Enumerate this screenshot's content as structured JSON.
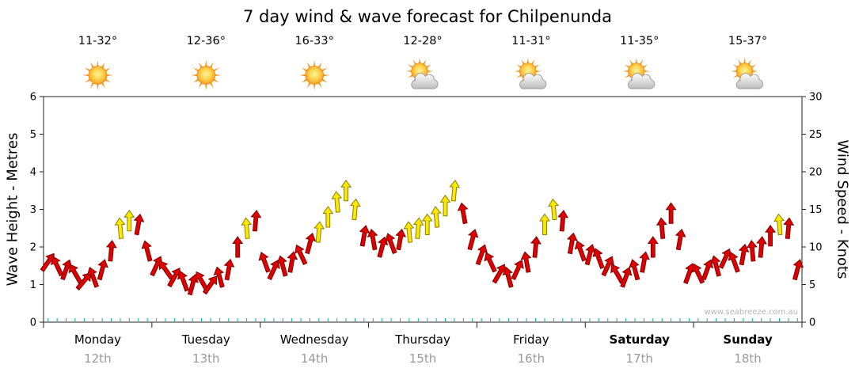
{
  "chart_data": {
    "type": "scatter",
    "subtype": "wind-arrow-forecast",
    "title": "7 day wind & wave forecast for Chilpenunda",
    "watermark": "www.seabreeze.com.au",
    "left_axis": {
      "label": "Wave Height - Metres",
      "min": 0,
      "max": 6,
      "ticks": [
        0,
        1,
        2,
        3,
        4,
        5,
        6
      ]
    },
    "right_axis": {
      "label": "Wind Speed - Knots",
      "min": 0,
      "max": 30,
      "ticks": [
        0,
        5,
        10,
        15,
        20,
        25,
        30
      ]
    },
    "wind_units": "knots",
    "direction_units": "degrees clockwise from up",
    "colors": {
      "arrow_low": "#E10000",
      "arrow_low_outline": "#7A0000",
      "arrow_high": "#FFE800",
      "arrow_high_outline": "#8A8000",
      "axis": "#222222",
      "minor_tick": "#00AEAE",
      "date_label": "#9A9A9A"
    },
    "days": [
      {
        "name": "Monday",
        "date": "12th",
        "temp": "11-32°",
        "icon": "sunny",
        "bold": false,
        "wind": [
          [
            8,
            35,
            "r"
          ],
          [
            7.5,
            -25,
            "r"
          ],
          [
            7,
            20,
            "r"
          ],
          [
            6.5,
            -30,
            "r"
          ],
          [
            5.5,
            40,
            "r"
          ],
          [
            6,
            -20,
            "r"
          ],
          [
            7,
            15,
            "r"
          ],
          [
            9.5,
            5,
            "r"
          ],
          [
            12.5,
            -5,
            "y"
          ],
          [
            13.5,
            0,
            "y"
          ],
          [
            13,
            10,
            "r"
          ],
          [
            9.5,
            -15,
            "r"
          ]
        ]
      },
      {
        "name": "Tuesday",
        "date": "13th",
        "temp": "12-36°",
        "icon": "sunny",
        "bold": false,
        "wind": [
          [
            7.5,
            25,
            "r"
          ],
          [
            7,
            -35,
            "r"
          ],
          [
            6,
            30,
            "r"
          ],
          [
            5.5,
            -20,
            "r"
          ],
          [
            5,
            15,
            "r"
          ],
          [
            5.5,
            -30,
            "r"
          ],
          [
            5,
            35,
            "r"
          ],
          [
            6,
            -15,
            "r"
          ],
          [
            7,
            10,
            "r"
          ],
          [
            10,
            0,
            "r"
          ],
          [
            12.5,
            -5,
            "y"
          ],
          [
            13.5,
            5,
            "r"
          ]
        ]
      },
      {
        "name": "Wednesday",
        "date": "14th",
        "temp": "16-33°",
        "icon": "sunny",
        "bold": false,
        "wind": [
          [
            8,
            -20,
            "r"
          ],
          [
            7,
            25,
            "r"
          ],
          [
            7.5,
            -15,
            "r"
          ],
          [
            8,
            10,
            "r"
          ],
          [
            9,
            -25,
            "r"
          ],
          [
            10.5,
            15,
            "r"
          ],
          [
            12,
            5,
            "y"
          ],
          [
            14,
            0,
            "y"
          ],
          [
            16,
            -5,
            "y"
          ],
          [
            17.5,
            0,
            "y"
          ],
          [
            15,
            5,
            "y"
          ],
          [
            11.5,
            10,
            "r"
          ]
        ]
      },
      {
        "name": "Thursday",
        "date": "15th",
        "temp": "12-28°",
        "icon": "partly-cloudy",
        "bold": false,
        "wind": [
          [
            11,
            -10,
            "r"
          ],
          [
            10,
            15,
            "r"
          ],
          [
            10.5,
            -20,
            "r"
          ],
          [
            11,
            10,
            "r"
          ],
          [
            12,
            -5,
            "y"
          ],
          [
            12.5,
            5,
            "y"
          ],
          [
            13,
            0,
            "y"
          ],
          [
            14,
            -5,
            "y"
          ],
          [
            15.5,
            0,
            "y"
          ],
          [
            17.5,
            5,
            "y"
          ],
          [
            14.5,
            -10,
            "r"
          ],
          [
            11,
            15,
            "r"
          ]
        ]
      },
      {
        "name": "Friday",
        "date": "16th",
        "temp": "11-31°",
        "icon": "partly-cloudy",
        "bold": false,
        "wind": [
          [
            9,
            20,
            "r"
          ],
          [
            8,
            -25,
            "r"
          ],
          [
            6.5,
            30,
            "r"
          ],
          [
            6,
            -15,
            "r"
          ],
          [
            7,
            25,
            "r"
          ],
          [
            8,
            -10,
            "r"
          ],
          [
            10,
            5,
            "r"
          ],
          [
            13,
            0,
            "y"
          ],
          [
            15,
            -5,
            "y"
          ],
          [
            13.5,
            5,
            "r"
          ],
          [
            10.5,
            10,
            "r"
          ],
          [
            9.5,
            -20,
            "r"
          ]
        ]
      },
      {
        "name": "Saturday",
        "date": "17th",
        "temp": "11-35°",
        "icon": "partly-cloudy",
        "bold": true,
        "wind": [
          [
            9,
            15,
            "r"
          ],
          [
            8.5,
            -20,
            "r"
          ],
          [
            7.5,
            25,
            "r"
          ],
          [
            6.5,
            -30,
            "r"
          ],
          [
            6,
            20,
            "r"
          ],
          [
            7,
            -15,
            "r"
          ],
          [
            8,
            10,
            "r"
          ],
          [
            10,
            0,
            "r"
          ],
          [
            12.5,
            -5,
            "r"
          ],
          [
            14.5,
            0,
            "r"
          ],
          [
            11,
            10,
            "r"
          ],
          [
            6.5,
            20,
            "r"
          ]
        ]
      },
      {
        "name": "Sunday",
        "date": "18th",
        "temp": "15-37°",
        "icon": "partly-cloudy",
        "bold": true,
        "wind": [
          [
            6.5,
            -25,
            "r"
          ],
          [
            7,
            20,
            "r"
          ],
          [
            7.5,
            -15,
            "r"
          ],
          [
            8.5,
            25,
            "r"
          ],
          [
            8,
            -20,
            "r"
          ],
          [
            9,
            10,
            "r"
          ],
          [
            9.5,
            -5,
            "r"
          ],
          [
            10,
            5,
            "r"
          ],
          [
            11.5,
            0,
            "r"
          ],
          [
            13,
            -5,
            "y"
          ],
          [
            12.5,
            5,
            "r"
          ],
          [
            7,
            15,
            "r"
          ]
        ]
      }
    ]
  }
}
